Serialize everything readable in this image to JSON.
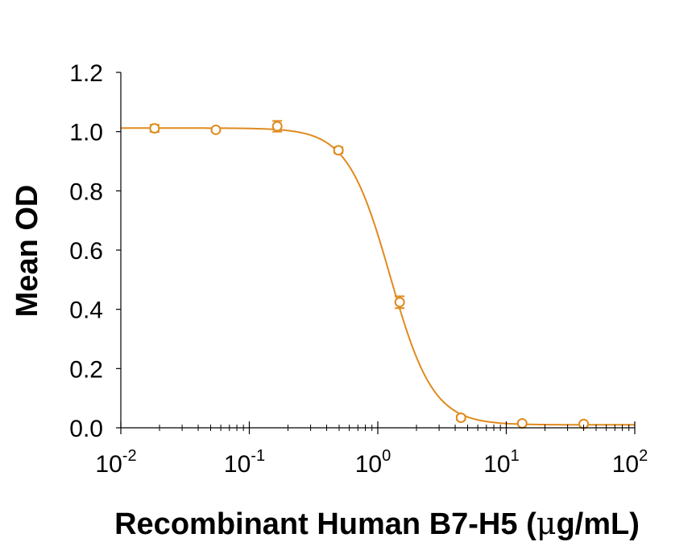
{
  "chart_data": {
    "type": "scatter",
    "xscale": "log",
    "xlim": [
      0.01,
      100
    ],
    "ylim": [
      0.0,
      1.2
    ],
    "ylabel": "Mean OD",
    "xlabel_parts": {
      "prefix": "Recombinant Human B7-H5 (",
      "mu": "μ",
      "suffix": "g/mL)"
    },
    "yticks": [
      0.0,
      0.2,
      0.4,
      0.6,
      0.8,
      1.0,
      1.2
    ],
    "ytick_labels": [
      "0.0",
      "0.2",
      "0.4",
      "0.6",
      "0.8",
      "1.0",
      "1.2"
    ],
    "xticks": [
      {
        "value": 0.01,
        "base": "10",
        "exp": "-2"
      },
      {
        "value": 0.1,
        "base": "10",
        "exp": "-1"
      },
      {
        "value": 1,
        "base": "10",
        "exp": "0"
      },
      {
        "value": 10,
        "base": "10",
        "exp": "1"
      },
      {
        "value": 100,
        "base": "10",
        "exp": "2"
      }
    ],
    "grid": false,
    "color": "#E08A1E",
    "series": [
      {
        "points": [
          {
            "x": 0.0183,
            "y": 1.011,
            "err": 0.012
          },
          {
            "x": 0.0549,
            "y": 1.006,
            "err": 0.0
          },
          {
            "x": 0.165,
            "y": 1.018,
            "err": 0.018
          },
          {
            "x": 0.494,
            "y": 0.937,
            "err": 0.01
          },
          {
            "x": 1.48,
            "y": 0.424,
            "err": 0.02
          },
          {
            "x": 4.44,
            "y": 0.034,
            "err": 0.008
          },
          {
            "x": 13.3,
            "y": 0.015,
            "err": 0.005
          },
          {
            "x": 40.0,
            "y": 0.013,
            "err": 0.004
          }
        ],
        "fit": {
          "model": "4PL",
          "top": 1.012,
          "bottom": 0.01,
          "ec50": 1.25,
          "hill": 2.6
        }
      }
    ]
  }
}
